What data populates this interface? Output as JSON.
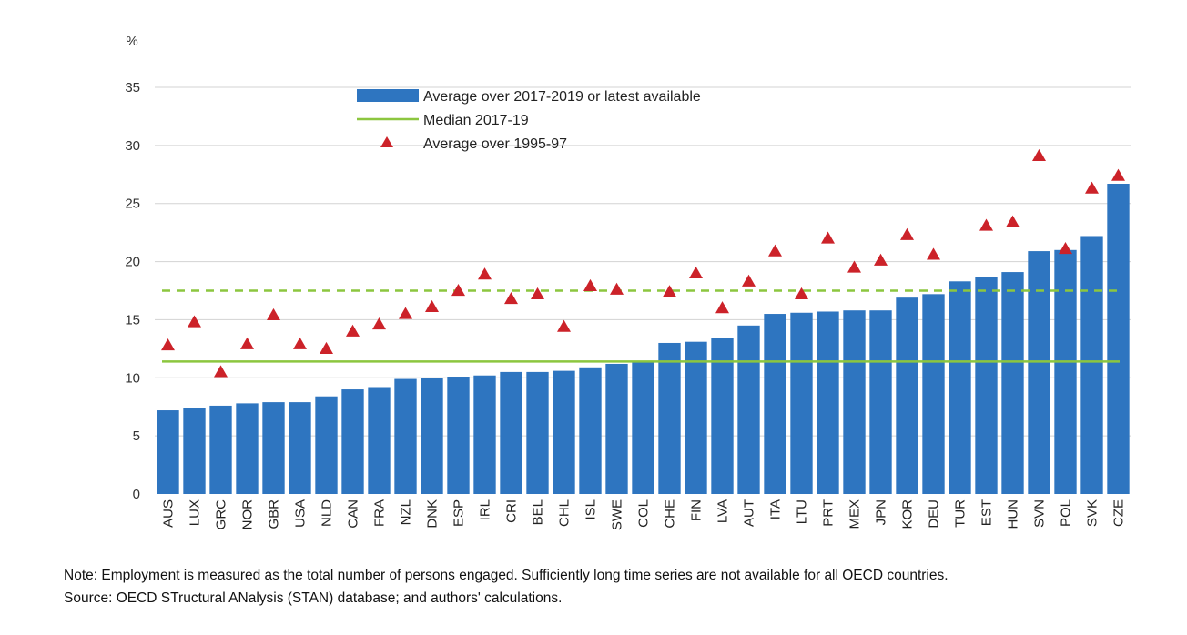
{
  "chart_data": {
    "type": "bar",
    "ylabel": "%",
    "ylim": [
      0,
      35
    ],
    "yticks": [
      0,
      5,
      10,
      15,
      20,
      25,
      30,
      35
    ],
    "grid": true,
    "legend_position": "top-center",
    "categories": [
      "AUS",
      "LUX",
      "GRC",
      "NOR",
      "GBR",
      "USA",
      "NLD",
      "CAN",
      "FRA",
      "NZL",
      "DNK",
      "ESP",
      "IRL",
      "CRI",
      "BEL",
      "CHL",
      "ISL",
      "SWE",
      "COL",
      "CHE",
      "FIN",
      "LVA",
      "AUT",
      "ITA",
      "LTU",
      "PRT",
      "MEX",
      "JPN",
      "KOR",
      "DEU",
      "TUR",
      "EST",
      "HUN",
      "SVN",
      "POL",
      "SVK",
      "CZE"
    ],
    "series": [
      {
        "name": "Average over 2017-2019 or latest available",
        "kind": "bar",
        "color": "#2e75c0",
        "values": [
          7.2,
          7.4,
          7.6,
          7.8,
          7.9,
          7.9,
          8.4,
          9.0,
          9.2,
          9.9,
          10.0,
          10.1,
          10.2,
          10.5,
          10.5,
          10.6,
          10.9,
          11.2,
          11.4,
          13.0,
          13.1,
          13.4,
          14.5,
          15.5,
          15.6,
          15.7,
          15.8,
          15.8,
          16.9,
          17.2,
          18.3,
          18.7,
          19.1,
          20.9,
          21.0,
          22.2,
          26.7
        ]
      },
      {
        "name": "Median 2017-19",
        "kind": "line",
        "color": "#8cc63f",
        "value": 11.4
      },
      {
        "name": "Average over 1995-97",
        "kind": "marker",
        "color": "#cc2229",
        "values": [
          12.8,
          14.8,
          10.5,
          12.9,
          15.4,
          12.9,
          12.5,
          14.0,
          14.6,
          15.5,
          16.1,
          17.5,
          18.9,
          16.8,
          17.2,
          14.4,
          17.9,
          17.6,
          null,
          17.4,
          19.0,
          16.0,
          18.3,
          20.9,
          17.2,
          22.0,
          19.5,
          20.1,
          22.3,
          20.6,
          null,
          23.1,
          23.4,
          29.1,
          21.1,
          26.3,
          27.4
        ]
      },
      {
        "name": "",
        "kind": "dashed-line",
        "color": "#8cc63f",
        "value": 17.5
      }
    ]
  },
  "notes": {
    "note": "Note: Employment is measured as the total number of persons engaged. Sufficiently long time series are not available for all OECD countries.",
    "source": "Source: OECD STructural ANalysis (STAN) database; and authors' calculations."
  }
}
